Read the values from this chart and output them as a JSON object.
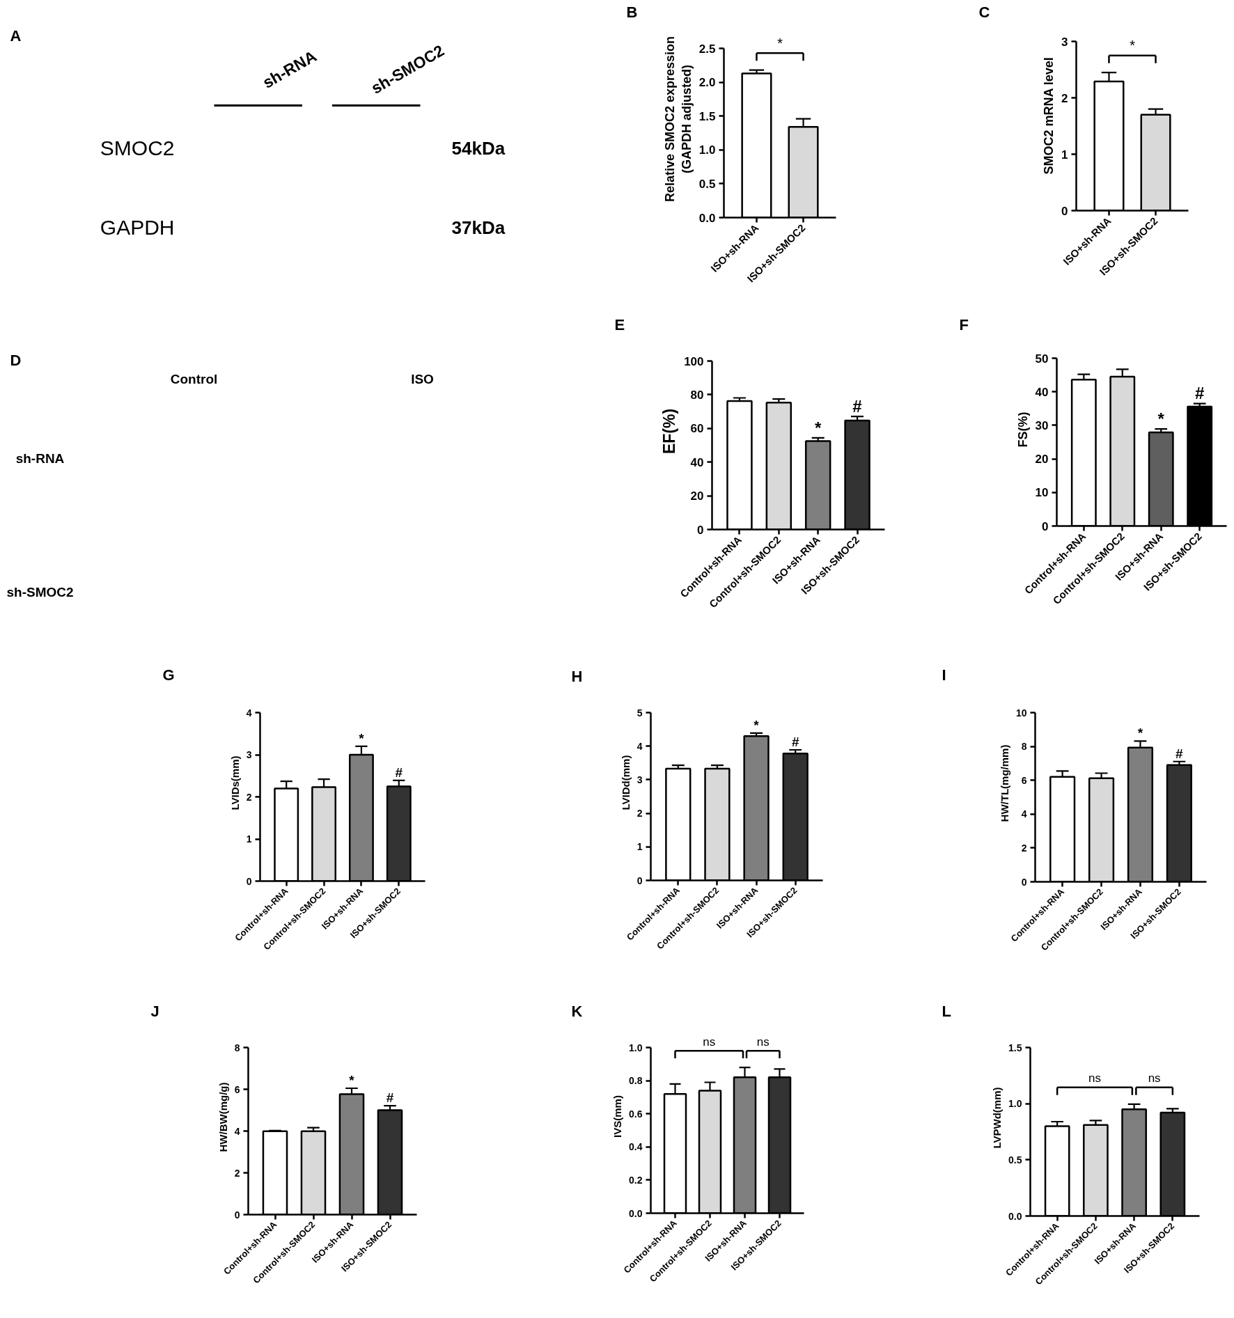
{
  "chart_data": [
    {
      "type": "other",
      "title": "A",
      "categories": [
        "sh-RNA",
        "sh-SMOC2"
      ],
      "y_categories": [
        "SMOC2",
        "GAPDH"
      ],
      "y2_categories": [
        "54kDa",
        "37kDa"
      ]
    },
    {
      "type": "bar",
      "title": "B",
      "ylabel": "Relative SMOC2 expression\n(GAPDH adjusted)",
      "categories": [
        "ISO+sh-RNA",
        "ISO+sh-SMOC2"
      ],
      "values": [
        2.13,
        1.34
      ],
      "errors": [
        0.05,
        0.12
      ],
      "colors": [
        "#ffffff",
        "#d9d9d9"
      ],
      "ylim": [
        0,
        2.5
      ],
      "yticks": [
        {
          "value": 0,
          "label": "0.0"
        },
        0.5,
        {
          "value": 1,
          "label": "1.0"
        },
        1.5,
        {
          "value": 2,
          "label": "2.0"
        },
        2.5
      ],
      "annotations": [
        "*"
      ]
    },
    {
      "type": "bar",
      "title": "C",
      "ylabel": "SMOC2 mRNA level",
      "categories": [
        "ISO+sh-RNA",
        "ISO+sh-SMOC2"
      ],
      "values": [
        2.29,
        1.7
      ],
      "errors": [
        0.16,
        0.1
      ],
      "colors": [
        "#ffffff",
        "#d9d9d9"
      ],
      "ylim": [
        0,
        3
      ],
      "yticks": [
        0,
        1,
        2,
        3
      ],
      "annotations": [
        "*"
      ]
    },
    {
      "type": "other",
      "title": "D",
      "categories": [
        "Control",
        "ISO"
      ],
      "y_categories": [
        "sh-RNA",
        "sh-SMOC2"
      ]
    },
    {
      "type": "bar",
      "title": "E",
      "ylabel": "EF(%)",
      "categories": [
        "Control+sh-RNA",
        "Control+sh-SMOC2",
        "ISO+sh-RNA",
        "ISO+sh-SMOC2"
      ],
      "values": [
        76.2,
        75.3,
        52.5,
        64.7
      ],
      "errors": [
        1.9,
        2.1,
        1.9,
        2.4
      ],
      "colors": [
        "#ffffff",
        "#d9d9d9",
        "#7f7f7f",
        "#333333"
      ],
      "ylim": [
        0,
        100
      ],
      "yticks": [
        0,
        20,
        40,
        60,
        80,
        100
      ],
      "annotations": [
        "*",
        "#"
      ]
    },
    {
      "type": "bar",
      "title": "F",
      "ylabel": "FS(%)",
      "categories": [
        "Control+sh-RNA",
        "Control+sh-SMOC2",
        "ISO+sh-RNA",
        "ISO+sh-SMOC2"
      ],
      "values": [
        43.6,
        44.5,
        27.9,
        35.6
      ],
      "errors": [
        1.6,
        2.2,
        1.0,
        0.9
      ],
      "colors": [
        "#ffffff",
        "#d9d9d9",
        "#5f5f5f",
        "#000000"
      ],
      "ylim": [
        0,
        50
      ],
      "yticks": [
        0,
        10,
        20,
        30,
        40,
        50
      ],
      "annotations": [
        "*",
        "#"
      ]
    },
    {
      "type": "bar",
      "title": "G",
      "ylabel": "LVIDs(mm)",
      "categories": [
        "Control+sh-RNA",
        "Control+sh-SMOC2",
        "ISO+sh-RNA",
        "ISO+sh-SMOC2"
      ],
      "values": [
        2.2,
        2.23,
        3.0,
        2.25
      ],
      "errors": [
        0.17,
        0.19,
        0.2,
        0.14
      ],
      "colors": [
        "#ffffff",
        "#d9d9d9",
        "#7f7f7f",
        "#333333"
      ],
      "ylim": [
        0,
        4
      ],
      "yticks": [
        0,
        1,
        2,
        3,
        4
      ],
      "annotations": [
        "*",
        "#"
      ]
    },
    {
      "type": "bar",
      "title": "H",
      "ylabel": "LVIDd(mm)",
      "categories": [
        "Control+sh-RNA",
        "Control+sh-SMOC2",
        "ISO+sh-RNA",
        "ISO+sh-SMOC2"
      ],
      "values": [
        3.33,
        3.33,
        4.3,
        3.78
      ],
      "errors": [
        0.1,
        0.1,
        0.09,
        0.11
      ],
      "colors": [
        "#ffffff",
        "#d9d9d9",
        "#7f7f7f",
        "#333333"
      ],
      "ylim": [
        0,
        5
      ],
      "yticks": [
        0,
        1,
        2,
        3,
        4,
        5
      ],
      "annotations": [
        "*",
        "#"
      ]
    },
    {
      "type": "bar",
      "title": "I",
      "ylabel": "HW/TL(mg/mm)",
      "categories": [
        "Control+sh-RNA",
        "Control+sh-SMOC2",
        "ISO+sh-RNA",
        "ISO+sh-SMOC2"
      ],
      "values": [
        6.2,
        6.12,
        7.93,
        6.9
      ],
      "errors": [
        0.35,
        0.3,
        0.39,
        0.21
      ],
      "colors": [
        "#ffffff",
        "#d9d9d9",
        "#7f7f7f",
        "#333333"
      ],
      "ylim": [
        0,
        10
      ],
      "yticks": [
        0,
        2,
        4,
        6,
        8,
        10
      ],
      "annotations": [
        "*",
        "#"
      ]
    },
    {
      "type": "bar",
      "title": "J",
      "ylabel": "HW/BW(mg/g)",
      "categories": [
        "Control+sh-RNA",
        "Control+sh-SMOC2",
        "ISO+sh-RNA",
        "ISO+sh-SMOC2"
      ],
      "values": [
        3.99,
        3.99,
        5.77,
        5.0
      ],
      "errors": [
        0.03,
        0.17,
        0.28,
        0.21
      ],
      "colors": [
        "#ffffff",
        "#d9d9d9",
        "#7f7f7f",
        "#333333"
      ],
      "ylim": [
        0,
        8
      ],
      "yticks": [
        0,
        2,
        4,
        6,
        8
      ],
      "annotations": [
        "*",
        "#"
      ]
    },
    {
      "type": "bar",
      "title": "K",
      "ylabel": "IVS(mm)",
      "categories": [
        "Control+sh-RNA",
        "Control+sh-SMOC2",
        "ISO+sh-RNA",
        "ISO+sh-SMOC2"
      ],
      "values": [
        0.72,
        0.74,
        0.82,
        0.82
      ],
      "errors": [
        0.06,
        0.05,
        0.06,
        0.05
      ],
      "colors": [
        "#ffffff",
        "#d9d9d9",
        "#7f7f7f",
        "#333333"
      ],
      "ylim": [
        0,
        1
      ],
      "yticks": [
        {
          "value": 0,
          "label": "0.0"
        },
        0.2,
        0.4,
        0.6,
        0.8,
        {
          "value": 1,
          "label": "1.0"
        }
      ],
      "annotations": [
        "ns",
        "ns"
      ]
    },
    {
      "type": "bar",
      "title": "L",
      "ylabel": "LVPWd(mm)",
      "categories": [
        "Control+sh-RNA",
        "Control+sh-SMOC2",
        "ISO+sh-RNA",
        "ISO+sh-SMOC2"
      ],
      "values": [
        0.8,
        0.81,
        0.95,
        0.92
      ],
      "errors": [
        0.04,
        0.04,
        0.045,
        0.035
      ],
      "colors": [
        "#ffffff",
        "#d9d9d9",
        "#7f7f7f",
        "#333333"
      ],
      "ylim": [
        0,
        1.5
      ],
      "yticks": [
        {
          "value": 0,
          "label": "0.0"
        },
        0.5,
        {
          "value": 1,
          "label": "1.0"
        },
        1.5
      ],
      "annotations": [
        "ns",
        "ns"
      ]
    }
  ]
}
